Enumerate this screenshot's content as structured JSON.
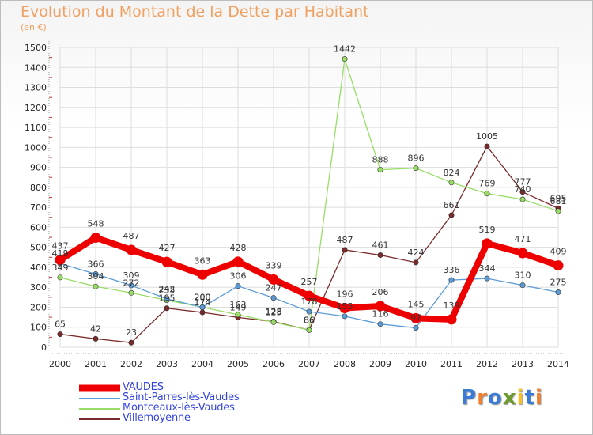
{
  "chart_data": {
    "type": "line",
    "title": "Evolution du Montant de la Dette par Habitant",
    "ylabel": "(en €)",
    "xlabel": "",
    "x": [
      "2000",
      "2001",
      "2002",
      "2003",
      "2004",
      "2005",
      "2006",
      "2007",
      "2008",
      "2009",
      "2010",
      "2011",
      "2012",
      "2013",
      "2014"
    ],
    "y_ticks": [
      "0",
      "100",
      "200",
      "300",
      "400",
      "500",
      "600",
      "700",
      "800",
      "900",
      "1000",
      "1100",
      "1200",
      "1300",
      "1400",
      "1500"
    ],
    "ylim": [
      0,
      1500
    ],
    "grid": true,
    "legend_placement": "bottom-left",
    "series": [
      {
        "name": "VAUDES",
        "color": "#ee0000",
        "values": [
          437,
          548,
          487,
          427,
          363,
          428,
          339,
          257,
          196,
          206,
          145,
          139,
          519,
          471,
          409
        ],
        "labels": [
          "437",
          "548",
          "487",
          "427",
          "363",
          "428",
          "339",
          "257",
          "196",
          "206",
          "145",
          "139",
          "519",
          "471",
          "409"
        ]
      },
      {
        "name": "Saint-Parres-lès-Vaudes",
        "color": "#5b9bd5",
        "values": [
          419,
          366,
          309,
          242,
          200,
          306,
          247,
          178,
          155,
          116,
          97,
          336,
          344,
          310,
          275
        ],
        "labels": [
          "419",
          "366",
          "309",
          "242",
          "200",
          "306",
          "247",
          "178",
          "155",
          "116",
          "97",
          "336",
          "344",
          "310",
          "275"
        ]
      },
      {
        "name": "Montceaux-lès-Vaudes",
        "color": "#99dd66",
        "values": [
          349,
          304,
          272,
          235,
          200,
          163,
          125,
          86,
          1442,
          888,
          896,
          824,
          769,
          740,
          681
        ],
        "labels": [
          "349",
          "304",
          "272",
          "235",
          "200",
          "163",
          "125",
          "86",
          "1442",
          "888",
          "896",
          "824",
          "769",
          "740",
          "681"
        ]
      },
      {
        "name": "Villemoyenne",
        "color": "#7a2a2a",
        "values": [
          65,
          42,
          23,
          195,
          174,
          149,
          128,
          86,
          487,
          461,
          424,
          661,
          1005,
          777,
          695
        ],
        "labels": [
          "65",
          "42",
          "23",
          "195",
          "174",
          "149",
          "128",
          "86",
          "487",
          "461",
          "424",
          "661",
          "1005",
          "777",
          "695"
        ]
      }
    ]
  },
  "logo": {
    "letters": [
      "P",
      "r",
      "o",
      "x",
      "i",
      "t",
      "i"
    ],
    "colors": [
      "#3a7bd5",
      "#f08030",
      "#3a7bd5",
      "#6a9b2a",
      "#f0c030",
      "#3a7bd5",
      "#f08030"
    ]
  }
}
